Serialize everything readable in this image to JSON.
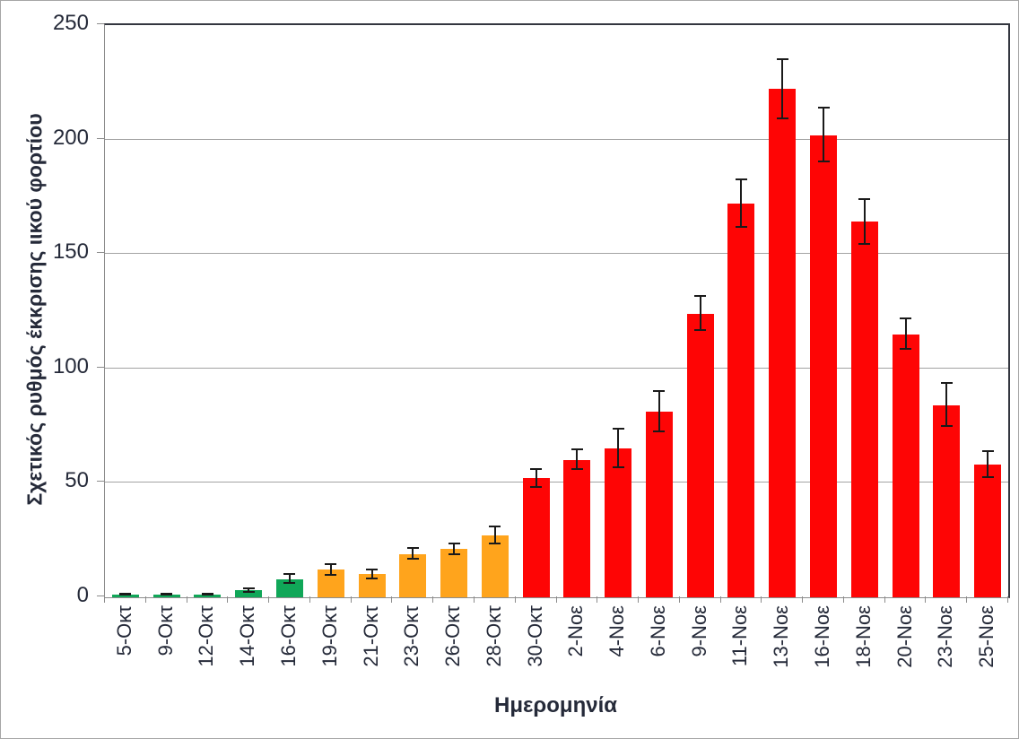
{
  "chart_data": {
    "type": "bar",
    "title": "",
    "xlabel": "Ημερομηνία",
    "ylabel": "Σχετικός ρυθμός έκκρισης ιικού φορτίου",
    "categories": [
      "5-Οκτ",
      "9-Οκτ",
      "12-Οκτ",
      "14-Οκτ",
      "16-Οκτ",
      "19-Οκτ",
      "21-Οκτ",
      "23-Οκτ",
      "26-Οκτ",
      "28-Οκτ",
      "30-Οκτ",
      "2-Νοε",
      "4-Νοε",
      "6-Νοε",
      "9-Νοε",
      "11-Νοε",
      "13-Νοε",
      "16-Νοε",
      "18-Νοε",
      "20-Νοε",
      "23-Νοε",
      "25-Νοε"
    ],
    "values": [
      1,
      1,
      1,
      3,
      8,
      12,
      10,
      19,
      21,
      27,
      52,
      60,
      65,
      81,
      124,
      172,
      222,
      202,
      164,
      115,
      84,
      58
    ],
    "errors": [
      0.4,
      0.4,
      0.4,
      1,
      2,
      2.5,
      2,
      2.5,
      2.5,
      4,
      4,
      4.5,
      8.5,
      9,
      7.5,
      10.5,
      13,
      12,
      10,
      7,
      9.5,
      6
    ],
    "bar_color_names": [
      "green",
      "green",
      "green",
      "green",
      "green",
      "orange",
      "orange",
      "orange",
      "orange",
      "orange",
      "red",
      "red",
      "red",
      "red",
      "red",
      "red",
      "red",
      "red",
      "red",
      "red",
      "red",
      "red"
    ],
    "palette": {
      "green": "#10a758",
      "orange": "#ffa41c",
      "red": "#fe0505"
    },
    "ylim": [
      0,
      250
    ],
    "yticks": [
      0,
      50,
      100,
      150,
      200,
      250
    ],
    "grid": true,
    "legend": false,
    "error_bars": true
  },
  "colors": {
    "text": "#252a39",
    "gridline": "#a3a3a3",
    "axis": "#8c8c8c",
    "frame": "#33363f",
    "error_bar": "#1a1a1a",
    "background": "#ffffff"
  }
}
